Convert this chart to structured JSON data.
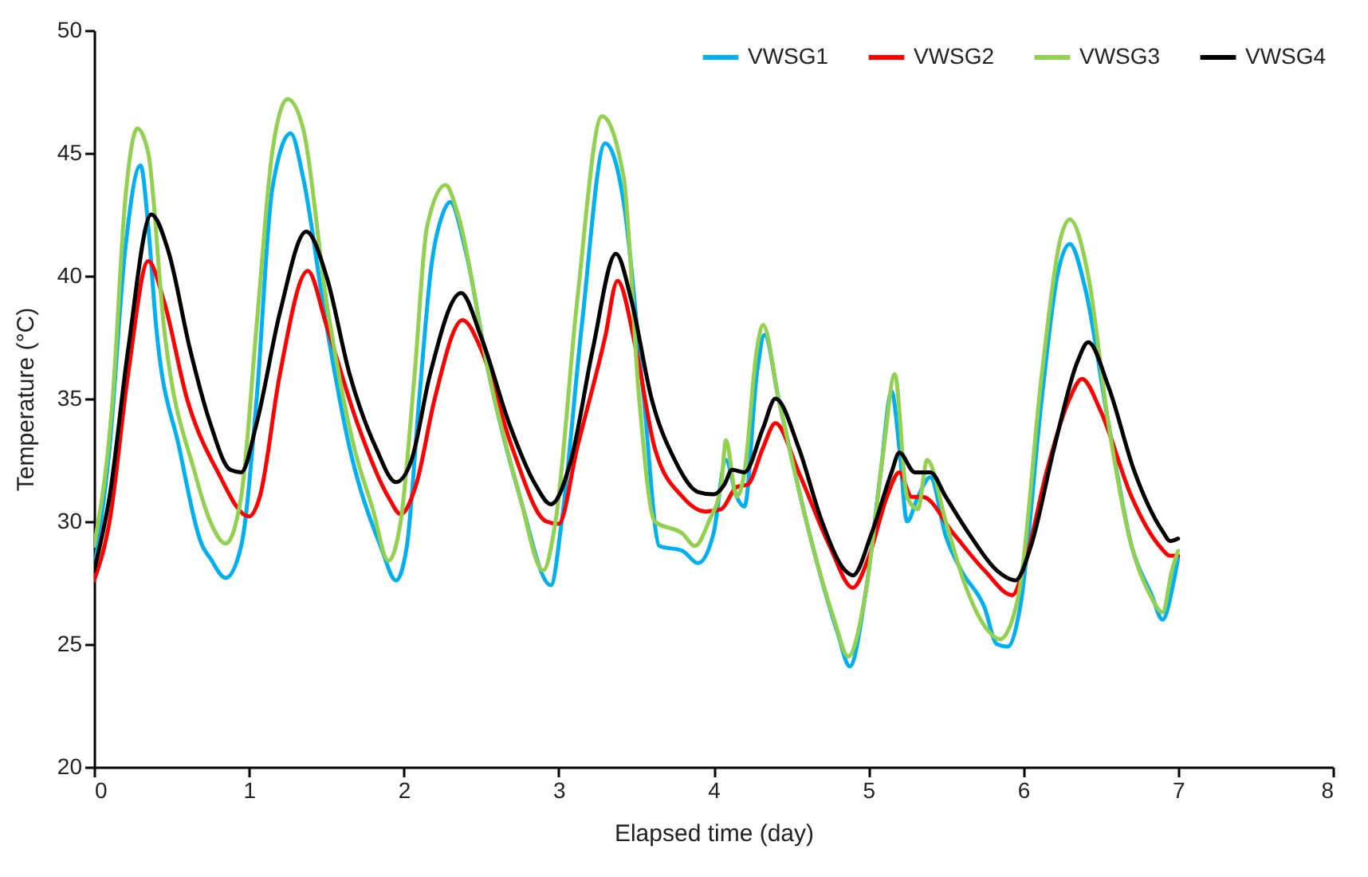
{
  "chart_data": {
    "type": "line",
    "xlabel": "Elapsed time (day)",
    "ylabel": "Temperature (°C)",
    "xlim": [
      0,
      8
    ],
    "xticks": [
      0,
      1,
      2,
      3,
      4,
      5,
      6,
      7,
      8
    ],
    "ylim": [
      20,
      50
    ],
    "yticks": [
      20,
      25,
      30,
      35,
      40,
      45,
      50
    ],
    "grid": false,
    "legend": "top right",
    "marker": "none",
    "line_style": "solid",
    "series": [
      {
        "name": "VWSG1",
        "color": "#00b0f0",
        "x": [
          0,
          0.1,
          0.2,
          0.3,
          0.35,
          0.4,
          0.55,
          0.7,
          0.75,
          0.85,
          0.95,
          1.05,
          1.15,
          1.27,
          1.35,
          1.5,
          1.65,
          1.85,
          1.95,
          2.02,
          2.1,
          2.18,
          2.25,
          2.3,
          2.4,
          2.55,
          2.75,
          2.95,
          3.02,
          3.15,
          3.3,
          3.42,
          3.55,
          3.65,
          3.8,
          3.9,
          4.0,
          4.08,
          4.15,
          4.2,
          4.28,
          4.33,
          4.42,
          4.6,
          4.8,
          4.88,
          4.98,
          5.08,
          5.15,
          5.2,
          5.25,
          5.32,
          5.4,
          5.5,
          5.6,
          5.75,
          5.83,
          5.9,
          5.98,
          6.12,
          6.22,
          6.3,
          6.4,
          6.55,
          6.7,
          6.83,
          6.9,
          6.97,
          7.0
        ],
        "values": [
          28,
          33,
          41,
          44.5,
          42,
          38,
          33,
          29,
          28.5,
          27.7,
          29,
          35,
          43.5,
          45.8,
          44,
          38,
          33,
          29,
          27.6,
          29,
          35,
          40.5,
          42.5,
          43,
          41,
          36,
          31,
          27.4,
          30,
          38,
          45.4,
          43,
          35,
          29,
          28.8,
          28.3,
          29.5,
          32.5,
          31,
          30.6,
          36,
          37.6,
          35,
          30,
          25.5,
          24.1,
          27,
          32,
          35.3,
          33,
          30,
          31,
          31.8,
          29.4,
          28,
          26.5,
          25,
          24.9,
          26.5,
          35,
          40,
          41.3,
          39.5,
          34,
          29,
          27,
          26,
          27.5,
          28.5
        ]
      },
      {
        "name": "VWSG2",
        "color": "#ff0000",
        "x": [
          0,
          0.1,
          0.22,
          0.35,
          0.45,
          0.6,
          0.8,
          1.0,
          1.07,
          1.2,
          1.38,
          1.5,
          1.7,
          1.9,
          1.98,
          2.08,
          2.2,
          2.38,
          2.5,
          2.7,
          2.92,
          3.0,
          3.12,
          3.3,
          3.38,
          3.5,
          3.62,
          3.8,
          3.95,
          4.05,
          4.15,
          4.22,
          4.32,
          4.4,
          4.55,
          4.75,
          4.9,
          5.0,
          5.12,
          5.2,
          5.28,
          5.35,
          5.55,
          5.75,
          5.93,
          6.02,
          6.15,
          6.3,
          6.38,
          6.5,
          6.7,
          6.88,
          6.95,
          7.0
        ],
        "values": [
          27.6,
          30,
          36,
          40.6,
          39,
          35,
          32,
          30.2,
          31,
          36,
          40.2,
          38,
          34,
          31,
          30.3,
          31.5,
          35,
          38.2,
          37,
          33,
          30,
          29.9,
          33,
          37.5,
          39.8,
          37,
          33,
          31,
          30.4,
          30.5,
          31.4,
          31.5,
          33,
          34,
          32,
          29,
          27.3,
          28.5,
          31,
          32,
          31,
          31,
          29.5,
          28,
          27,
          28.5,
          32,
          35,
          35.8,
          34.5,
          31,
          29,
          28.6,
          28.6
        ]
      },
      {
        "name": "VWSG3",
        "color": "#92d050",
        "x": [
          0,
          0.12,
          0.2,
          0.28,
          0.35,
          0.45,
          0.65,
          0.75,
          0.85,
          0.95,
          1.05,
          1.15,
          1.25,
          1.35,
          1.5,
          1.68,
          1.8,
          1.9,
          1.98,
          2.07,
          2.15,
          2.27,
          2.35,
          2.55,
          2.75,
          2.9,
          2.98,
          3.12,
          3.28,
          3.42,
          3.52,
          3.62,
          3.8,
          3.88,
          3.97,
          4.05,
          4.08,
          4.15,
          4.2,
          4.28,
          4.32,
          4.42,
          4.6,
          4.78,
          4.87,
          4.98,
          5.1,
          5.17,
          5.25,
          5.32,
          5.38,
          5.5,
          5.62,
          5.78,
          5.85,
          5.97,
          6.12,
          6.24,
          6.3,
          6.42,
          6.55,
          6.7,
          6.82,
          6.9,
          6.96,
          7.0
        ],
        "values": [
          29,
          35,
          43,
          46,
          45,
          38,
          32,
          30,
          29.1,
          31,
          38,
          45,
          47.2,
          46,
          39,
          33,
          30.5,
          28.4,
          30,
          36,
          42,
          43.7,
          42.5,
          36,
          31,
          28,
          30,
          39,
          46.5,
          44,
          35,
          30,
          29.5,
          29,
          30,
          31.5,
          33.3,
          31,
          32,
          37,
          38,
          35,
          30,
          26,
          24.5,
          27,
          33,
          36,
          31,
          30.5,
          32.5,
          30,
          27.5,
          25.5,
          25.2,
          27,
          36,
          41.5,
          42.3,
          40,
          34,
          29,
          27,
          26.3,
          28,
          28.8
        ]
      },
      {
        "name": "VWSG4",
        "color": "#000000",
        "x": [
          0,
          0.1,
          0.22,
          0.37,
          0.48,
          0.62,
          0.75,
          0.88,
          0.95,
          1.05,
          1.2,
          1.37,
          1.5,
          1.65,
          1.82,
          1.95,
          2.05,
          2.17,
          2.37,
          2.5,
          2.68,
          2.85,
          2.95,
          3.08,
          3.22,
          3.37,
          3.47,
          3.6,
          3.75,
          3.9,
          4.0,
          4.07,
          4.12,
          4.2,
          4.32,
          4.4,
          4.55,
          4.7,
          4.85,
          4.9,
          5.02,
          5.15,
          5.2,
          5.3,
          5.4,
          5.5,
          5.65,
          5.83,
          5.95,
          6.05,
          6.2,
          6.35,
          6.42,
          6.55,
          6.72,
          6.9,
          6.95,
          7.0
        ],
        "values": [
          28,
          31,
          37,
          42.5,
          41,
          37,
          34,
          32.1,
          32,
          34,
          38.5,
          41.8,
          40,
          36,
          33,
          31.6,
          32.5,
          36,
          39.3,
          37.5,
          34,
          31.5,
          30.7,
          32.5,
          37,
          40.9,
          39,
          35,
          32.5,
          31.2,
          31.1,
          31.5,
          32.1,
          32,
          33.8,
          35,
          33,
          30,
          28,
          27.8,
          29.5,
          32,
          32.8,
          32,
          32,
          31,
          29.5,
          28,
          27.6,
          29,
          33,
          36.5,
          37.3,
          35.5,
          32,
          29.6,
          29.2,
          29.3
        ]
      }
    ]
  }
}
